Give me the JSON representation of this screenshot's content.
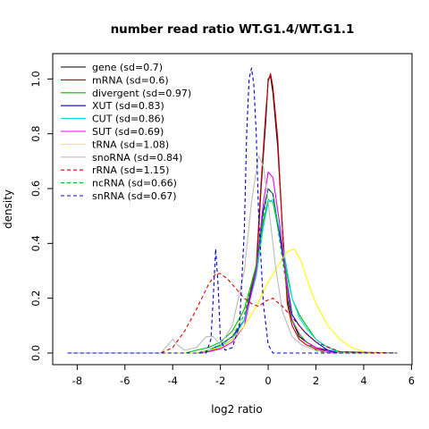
{
  "chart_data": {
    "type": "line",
    "title": "number read ratio WT.G1.4/WT.G1.1",
    "xlabel": "log2 ratio",
    "ylabel": "density",
    "xlim": [
      -8.5,
      5.5
    ],
    "ylim": [
      0,
      1.05
    ],
    "xticks": [
      -8,
      -6,
      -4,
      -2,
      0,
      2,
      4,
      6
    ],
    "yticks": [
      0.0,
      0.2,
      0.4,
      0.6,
      0.8,
      1.0
    ],
    "xtick_labels": [
      "-8",
      "-6",
      "-4",
      "-2",
      "0",
      "2",
      "4",
      "6"
    ],
    "ytick_labels": [
      "0.0",
      "0.2",
      "0.4",
      "0.6",
      "0.8",
      "1.0"
    ],
    "legend_position": "top-left",
    "grid": false,
    "series": [
      {
        "name": "gene (sd=0.7)",
        "color": "#000000",
        "dash": "solid",
        "x": [
          -8.4,
          -3.0,
          -2.5,
          -2.0,
          -1.5,
          -1.0,
          -0.5,
          -0.3,
          -0.1,
          0.0,
          0.1,
          0.2,
          0.4,
          0.6,
          0.8,
          1.0,
          1.3,
          1.6,
          2.0,
          2.5,
          3.0,
          5.4
        ],
        "y": [
          0,
          0,
          0.005,
          0.02,
          0.05,
          0.12,
          0.3,
          0.6,
          0.85,
          1.0,
          1.01,
          0.95,
          0.75,
          0.45,
          0.2,
          0.12,
          0.06,
          0.04,
          0.02,
          0.01,
          0,
          0
        ]
      },
      {
        "name": "mRNA (sd=0.6)",
        "color": "#cc0000",
        "dash": "solid",
        "x": [
          -8.4,
          -3.0,
          -2.5,
          -2.0,
          -1.5,
          -1.0,
          -0.5,
          -0.3,
          -0.1,
          0.0,
          0.1,
          0.2,
          0.4,
          0.6,
          0.8,
          1.0,
          1.3,
          1.6,
          2.0,
          2.5,
          3.0,
          5.4
        ],
        "y": [
          0,
          0,
          0.005,
          0.02,
          0.05,
          0.12,
          0.32,
          0.62,
          0.88,
          0.99,
          1.02,
          0.97,
          0.78,
          0.45,
          0.18,
          0.1,
          0.05,
          0.03,
          0.015,
          0.005,
          0,
          0
        ]
      },
      {
        "name": "divergent (sd=0.97)",
        "color": "#00bb00",
        "dash": "solid",
        "x": [
          -8.4,
          -3.5,
          -3.0,
          -2.5,
          -2.0,
          -1.5,
          -1.0,
          -0.5,
          -0.2,
          0.0,
          0.2,
          0.5,
          0.8,
          1.0,
          1.3,
          1.6,
          2.0,
          2.5,
          3.0,
          5.4
        ],
        "y": [
          0,
          0,
          0.01,
          0.02,
          0.04,
          0.08,
          0.16,
          0.32,
          0.48,
          0.56,
          0.55,
          0.42,
          0.28,
          0.2,
          0.14,
          0.1,
          0.05,
          0.02,
          0.005,
          0
        ]
      },
      {
        "name": "XUT (sd=0.83)",
        "color": "#0000cc",
        "dash": "solid",
        "x": [
          -8.4,
          -3.0,
          -2.5,
          -2.0,
          -1.5,
          -1.0,
          -0.5,
          -0.2,
          0.0,
          0.2,
          0.5,
          0.8,
          1.0,
          1.3,
          1.6,
          2.0,
          2.5,
          3.0,
          5.4
        ],
        "y": [
          0,
          0,
          0.01,
          0.03,
          0.06,
          0.12,
          0.3,
          0.52,
          0.6,
          0.58,
          0.42,
          0.25,
          0.14,
          0.1,
          0.07,
          0.04,
          0.01,
          0,
          0
        ]
      },
      {
        "name": "CUT (sd=0.86)",
        "color": "#00dddd",
        "dash": "solid",
        "x": [
          -8.4,
          -3.0,
          -2.5,
          -2.0,
          -1.5,
          -1.0,
          -0.5,
          -0.2,
          0.0,
          0.2,
          0.5,
          0.8,
          1.0,
          1.3,
          1.6,
          2.0,
          2.5,
          3.0,
          5.4
        ],
        "y": [
          0,
          0,
          0.01,
          0.025,
          0.05,
          0.12,
          0.28,
          0.46,
          0.55,
          0.56,
          0.44,
          0.3,
          0.2,
          0.13,
          0.09,
          0.05,
          0.02,
          0,
          0
        ]
      },
      {
        "name": "SUT (sd=0.69)",
        "color": "#ee00ee",
        "dash": "solid",
        "x": [
          -8.4,
          -3.0,
          -2.5,
          -2.0,
          -1.5,
          -1.0,
          -0.5,
          -0.2,
          0.0,
          0.2,
          0.5,
          0.8,
          1.0,
          1.3,
          1.6,
          2.0,
          2.5,
          3.0,
          5.4
        ],
        "y": [
          0,
          0,
          0.005,
          0.015,
          0.04,
          0.1,
          0.3,
          0.55,
          0.66,
          0.64,
          0.46,
          0.24,
          0.12,
          0.07,
          0.04,
          0.02,
          0.005,
          0,
          0
        ]
      },
      {
        "name": "tRNA (sd=1.08)",
        "color": "#ffff00",
        "dash": "solid",
        "x": [
          -8.4,
          -3.0,
          -2.5,
          -2.0,
          -1.5,
          -1.0,
          -0.5,
          0.0,
          0.5,
          0.8,
          1.1,
          1.4,
          1.7,
          2.0,
          2.5,
          3.0,
          3.5,
          4.0,
          5.4
        ],
        "y": [
          0,
          0,
          0.01,
          0.02,
          0.05,
          0.1,
          0.17,
          0.26,
          0.33,
          0.37,
          0.38,
          0.33,
          0.25,
          0.18,
          0.1,
          0.05,
          0.02,
          0.005,
          0
        ]
      },
      {
        "name": "snoRNA (sd=0.84)",
        "color": "#bbbbbb",
        "dash": "solid",
        "x": [
          -8.4,
          -4.5,
          -4.2,
          -4.0,
          -3.8,
          -3.5,
          -3.0,
          -2.6,
          -2.3,
          -2.0,
          -1.5,
          -1.0,
          -0.7,
          -0.4,
          -0.2,
          0.0,
          0.3,
          0.6,
          1.0,
          1.4,
          2.0,
          2.5,
          5.4
        ],
        "y": [
          0,
          0,
          0.03,
          0.05,
          0.03,
          0.01,
          0.02,
          0.06,
          0.06,
          0.03,
          0.1,
          0.3,
          0.55,
          0.72,
          0.68,
          0.55,
          0.32,
          0.15,
          0.06,
          0.03,
          0.01,
          0,
          0
        ]
      },
      {
        "name": "rRNA (sd=1.15)",
        "color": "#dd0000",
        "dash": "dashed",
        "x": [
          -8.4,
          -4.5,
          -4.0,
          -3.5,
          -3.0,
          -2.5,
          -2.2,
          -2.0,
          -1.7,
          -1.4,
          -1.0,
          -0.7,
          -0.4,
          -0.1,
          0.2,
          0.6,
          1.0,
          1.5,
          2.0,
          3.0,
          5.4
        ],
        "y": [
          0,
          0,
          0.02,
          0.08,
          0.16,
          0.25,
          0.29,
          0.29,
          0.27,
          0.24,
          0.2,
          0.18,
          0.17,
          0.19,
          0.2,
          0.17,
          0.13,
          0.08,
          0.04,
          0.005,
          0
        ]
      },
      {
        "name": "ncRNA (sd=0.66)",
        "color": "#00bb00",
        "dash": "dashed",
        "x": [
          -8.4,
          -3.0,
          -2.5,
          -2.0,
          -1.5,
          -1.0,
          -0.5,
          -0.2,
          0.0,
          0.2,
          0.5,
          0.8,
          1.0,
          1.3,
          1.6,
          2.0,
          2.5,
          5.4
        ],
        "y": [
          0,
          0,
          0.01,
          0.03,
          0.06,
          0.14,
          0.32,
          0.5,
          0.6,
          0.58,
          0.4,
          0.22,
          0.12,
          0.07,
          0.04,
          0.01,
          0,
          0
        ]
      },
      {
        "name": "snRNA (sd=0.67)",
        "color": "#0000cc",
        "dash": "dashed",
        "x": [
          -8.4,
          -2.6,
          -2.4,
          -2.3,
          -2.2,
          -2.1,
          -2.0,
          -1.8,
          -1.5,
          -1.2,
          -1.0,
          -0.9,
          -0.8,
          -0.7,
          -0.6,
          -0.5,
          -0.4,
          -0.2,
          0.0,
          0.2,
          5.4
        ],
        "y": [
          0,
          0,
          0.05,
          0.2,
          0.38,
          0.25,
          0.05,
          0.01,
          0.02,
          0.1,
          0.45,
          0.8,
          1.0,
          1.04,
          0.98,
          0.8,
          0.5,
          0.18,
          0.03,
          0,
          0
        ]
      }
    ]
  }
}
